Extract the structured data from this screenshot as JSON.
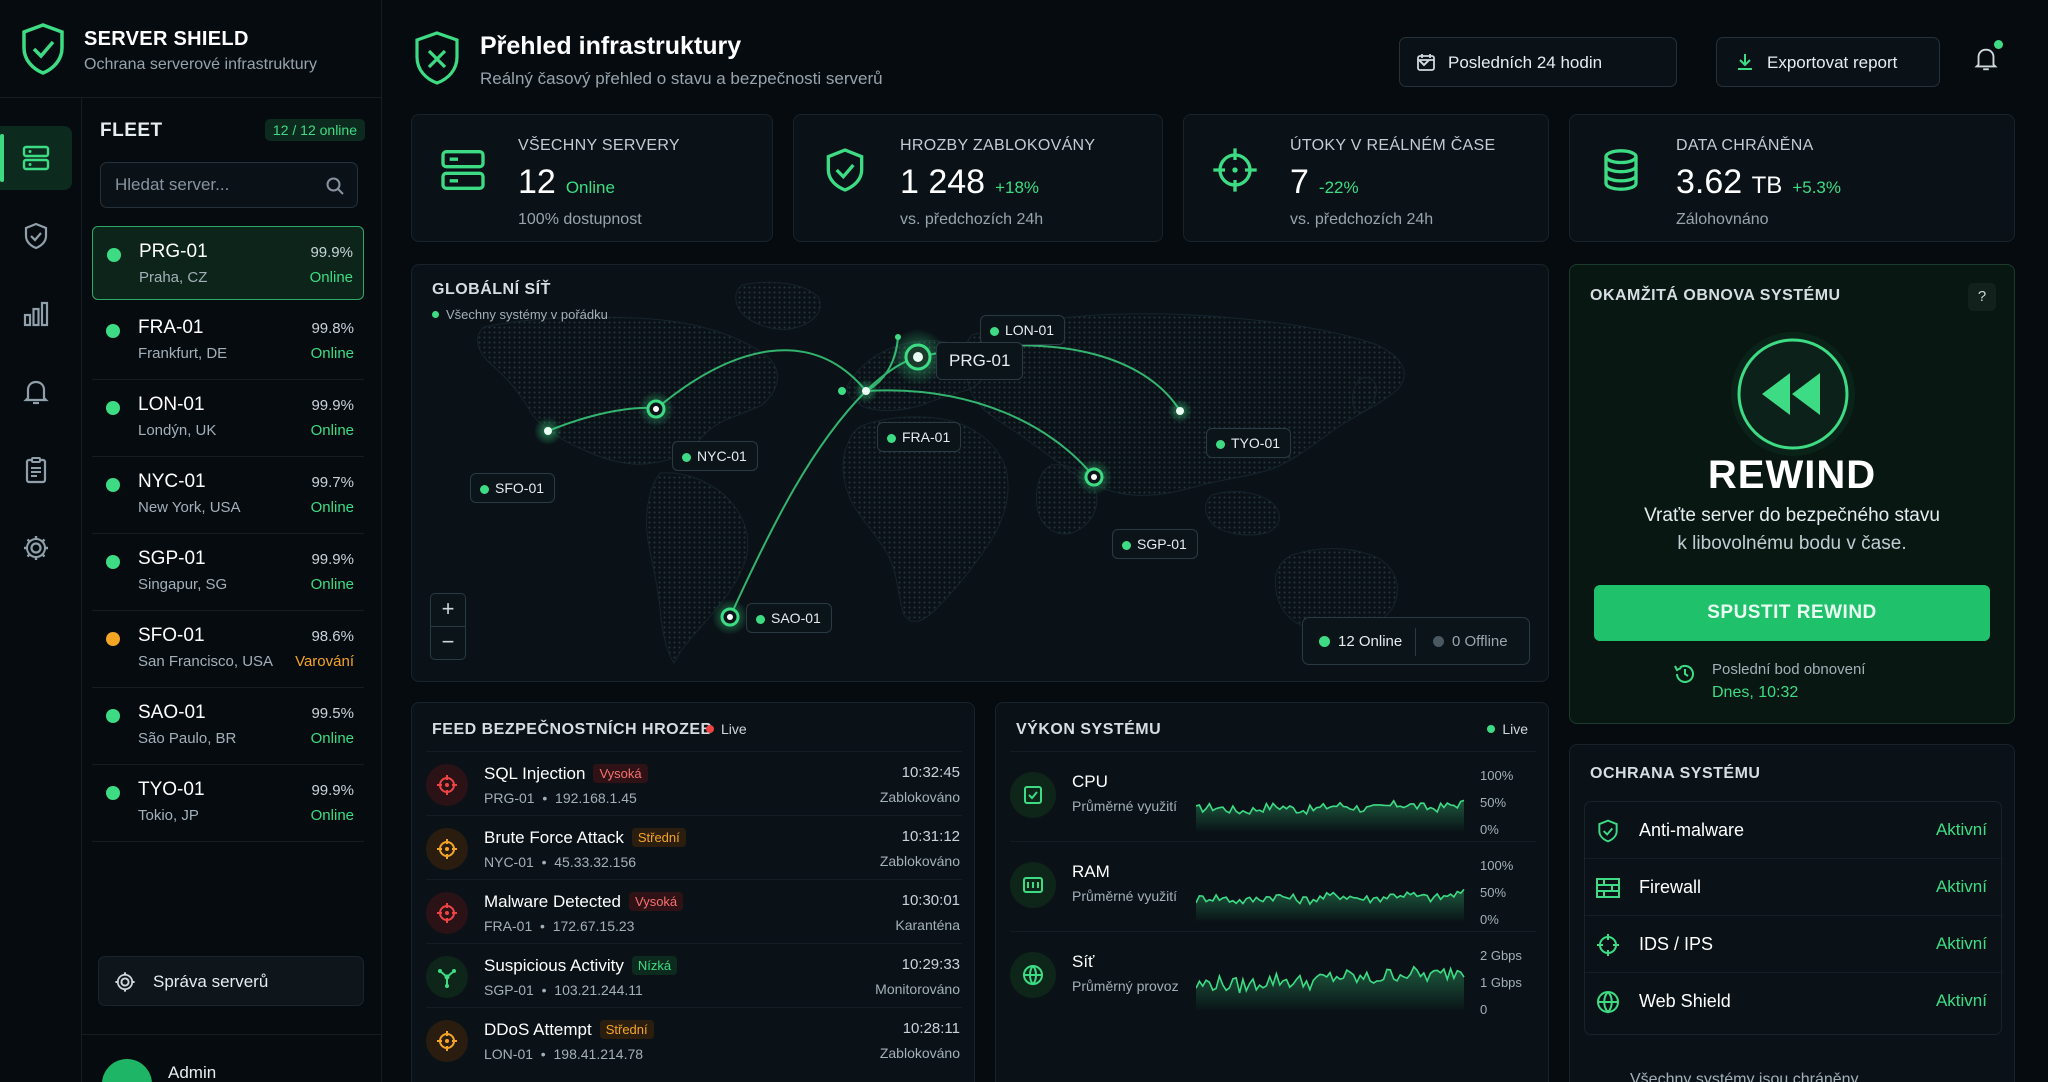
{
  "brand": {
    "title": "SERVER SHIELD",
    "subtitle": "Ochrana serverové infrastruktury"
  },
  "fleet": {
    "title": "FLEET",
    "online_badge": "12 / 12 online",
    "search_placeholder": "Hledat server...",
    "servers": [
      {
        "name": "PRG-01",
        "location": "Praha, CZ",
        "uptime": "99.9%",
        "status": "Online",
        "state": "ok"
      },
      {
        "name": "FRA-01",
        "location": "Frankfurt, DE",
        "uptime": "99.8%",
        "status": "Online",
        "state": "ok"
      },
      {
        "name": "LON-01",
        "location": "Londýn, UK",
        "uptime": "99.9%",
        "status": "Online",
        "state": "ok"
      },
      {
        "name": "NYC-01",
        "location": "New York, USA",
        "uptime": "99.7%",
        "status": "Online",
        "state": "ok"
      },
      {
        "name": "SGP-01",
        "location": "Singapur, SG",
        "uptime": "99.9%",
        "status": "Online",
        "state": "ok"
      },
      {
        "name": "SFO-01",
        "location": "San Francisco, USA",
        "uptime": "98.6%",
        "status": "Varování",
        "state": "warn"
      },
      {
        "name": "SAO-01",
        "location": "São Paulo, BR",
        "uptime": "99.5%",
        "status": "Online",
        "state": "ok"
      },
      {
        "name": "TYO-01",
        "location": "Tokio, JP",
        "uptime": "99.9%",
        "status": "Online",
        "state": "ok"
      }
    ],
    "manage_label": "Správa serverů",
    "user_name": "Admin"
  },
  "header": {
    "title": "Přehled infrastruktury",
    "subtitle": "Reálný časový přehled o stavu a bezpečnosti serverů",
    "range_label": "Posledních 24 hodin",
    "export_label": "Exportovat report"
  },
  "stats": {
    "servers": {
      "label": "VŠECHNY SERVERY",
      "value": "12",
      "extra": "Online",
      "foot": "100% dostupnost"
    },
    "threats": {
      "label": "HROZBY ZABLOKOVÁNY",
      "value": "1 248",
      "extra": "+18%",
      "foot": "vs. předchozích 24h"
    },
    "attacks": {
      "label": "ÚTOKY V REÁLNÉM ČASE",
      "value": "7",
      "extra": "-22%",
      "foot": "vs. předchozích 24h"
    },
    "data": {
      "label": "DATA CHRÁNĚNA",
      "value": "3.62",
      "unit": "TB",
      "extra": "+5.3%",
      "foot": "Zálohovnáno"
    }
  },
  "map": {
    "title": "GLOBÁLNÍ SÍŤ",
    "status": "Všechny systémy v pořádku",
    "nodes": {
      "lon": "LON-01",
      "prg": "PRG-01",
      "fra": "FRA-01",
      "nyc": "NYC-01",
      "sfo": "SFO-01",
      "tyo": "TYO-01",
      "sgp": "SGP-01",
      "sao": "SAO-01"
    },
    "zoom_in": "+",
    "zoom_out": "−",
    "legend_online": "12 Online",
    "legend_offline": "0 Offline"
  },
  "feed": {
    "title": "FEED BEZPEČNOSTNÍCH HROZEB",
    "live": "Live",
    "items": [
      {
        "name": "SQL Injection",
        "severity": "Vysoká",
        "server": "PRG-01",
        "ip": "192.168.1.45",
        "time": "10:32:45",
        "result": "Zablokováno",
        "tone": "red"
      },
      {
        "name": "Brute Force Attack",
        "severity": "Střední",
        "server": "NYC-01",
        "ip": "45.33.32.156",
        "time": "10:31:12",
        "result": "Zablokováno",
        "tone": "orange"
      },
      {
        "name": "Malware Detected",
        "severity": "Vysoká",
        "server": "FRA-01",
        "ip": "172.67.15.23",
        "time": "10:30:01",
        "result": "Karanténa",
        "tone": "red"
      },
      {
        "name": "Suspicious Activity",
        "severity": "Nízká",
        "server": "SGP-01",
        "ip": "103.21.244.11",
        "time": "10:29:33",
        "result": "Monitorováno",
        "tone": "green"
      },
      {
        "name": "DDoS Attempt",
        "severity": "Střední",
        "server": "LON-01",
        "ip": "198.41.214.78",
        "time": "10:28:11",
        "result": "Zablokováno",
        "tone": "orange"
      }
    ]
  },
  "performance": {
    "title": "VÝKON SYSTÉMU",
    "live": "Live",
    "metrics": [
      {
        "name": "CPU",
        "sub": "Průměrné využití",
        "axis": [
          "100%",
          "50%",
          "0%"
        ],
        "icon": "cpu-icon"
      },
      {
        "name": "RAM",
        "sub": "Průměrné využití",
        "axis": [
          "100%",
          "50%",
          "0%"
        ],
        "icon": "ram-icon"
      },
      {
        "name": "Síť",
        "sub": "Průměrný provoz",
        "axis": [
          "2 Gbps",
          "1 Gbps",
          "0"
        ],
        "icon": "network-icon"
      }
    ]
  },
  "rewind": {
    "title": "OKAMŽITÁ OBNOVA SYSTÉMU",
    "help": "?",
    "word": "REWIND",
    "desc1": "Vraťte server do bezpečného stavu",
    "desc2": "k libovolnému bodu v čase.",
    "button": "SPUSTIT REWIND",
    "point_label": "Poslední bod obnovení",
    "point_time": "Dnes, 10:32"
  },
  "protection": {
    "title": "OCHRANA SYSTÉMU",
    "items": [
      {
        "name": "Anti-malware",
        "status": "Aktivní"
      },
      {
        "name": "Firewall",
        "status": "Aktivní"
      },
      {
        "name": "IDS / IPS",
        "status": "Aktivní"
      },
      {
        "name": "Web Shield",
        "status": "Aktivní"
      }
    ],
    "footer": "Všechny systémy jsou chráněny"
  },
  "colors": {
    "accent": "#3ddc84",
    "warning": "#f5a524",
    "danger": "#ef4444",
    "background": "#060b10"
  }
}
